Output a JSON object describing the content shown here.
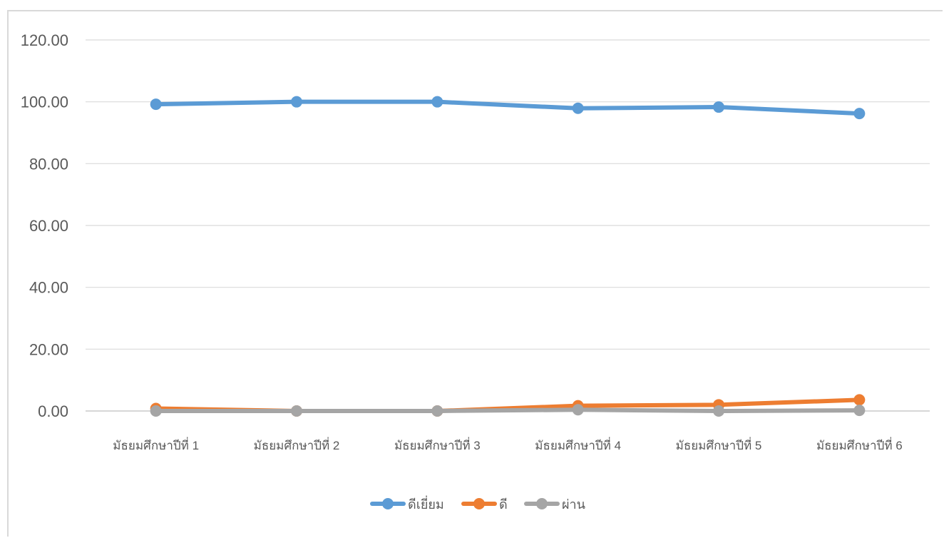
{
  "chart_data": {
    "type": "line",
    "title": "",
    "xlabel": "",
    "ylabel": "",
    "categories": [
      "มัธยมศึกษาปีที่ 1",
      "มัธยมศึกษาปีที่ 2",
      "มัธยมศึกษาปีที่ 3",
      "มัธยมศึกษาปีที่ 4",
      "มัธยมศึกษาปีที่ 5",
      "มัธยมศึกษาปีที่ 6"
    ],
    "ylim": [
      0,
      120
    ],
    "yticks": [
      "0.00",
      "20.00",
      "40.00",
      "60.00",
      "80.00",
      "100.00",
      "120.00"
    ],
    "grid": true,
    "legend_position": "bottom",
    "series": [
      {
        "name": "ดีเยี่ยม",
        "color": "#5b9bd5",
        "values": [
          99.2,
          100.0,
          100.0,
          97.9,
          98.3,
          96.2
        ]
      },
      {
        "name": "ดี",
        "color": "#ed7d31",
        "values": [
          0.8,
          0.0,
          0.0,
          1.7,
          2.0,
          3.6
        ]
      },
      {
        "name": "ผ่าน",
        "color": "#a5a5a5",
        "values": [
          0.0,
          0.0,
          0.0,
          0.4,
          0.0,
          0.2
        ]
      }
    ]
  }
}
